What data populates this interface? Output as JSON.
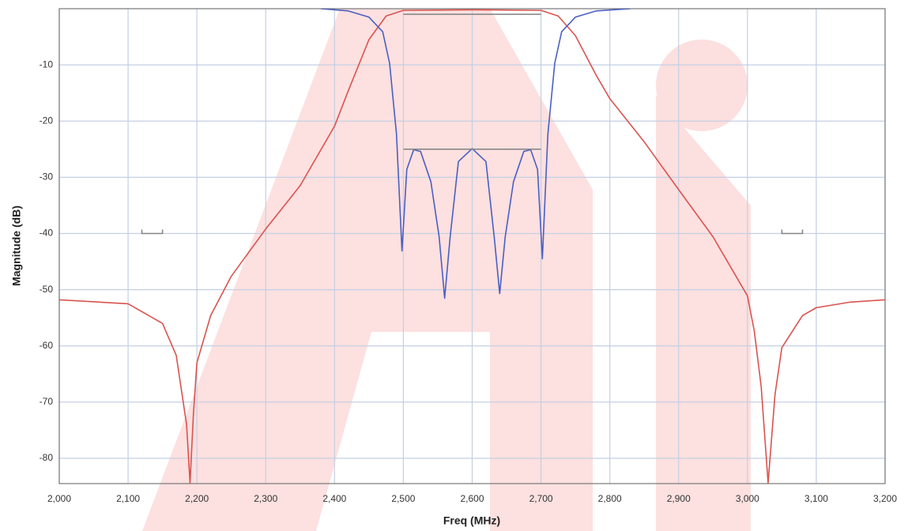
{
  "chart_data": {
    "type": "line",
    "x_label": "Freq (MHz)",
    "y_label": "Magnitude (dB)",
    "xlim": [
      2000,
      3200
    ],
    "ylim": [
      -84.5,
      0
    ],
    "xticks": [
      {
        "value": 2000,
        "label": "2,000"
      },
      {
        "value": 2100,
        "label": "2,100"
      },
      {
        "value": 2200,
        "label": "2,200"
      },
      {
        "value": 2300,
        "label": "2,300"
      },
      {
        "value": 2400,
        "label": "2,400"
      },
      {
        "value": 2500,
        "label": "2,500"
      },
      {
        "value": 2600,
        "label": "2,600"
      },
      {
        "value": 2700,
        "label": "2,700"
      },
      {
        "value": 2800,
        "label": "2,800"
      },
      {
        "value": 2900,
        "label": "2,900"
      },
      {
        "value": 3000,
        "label": "3,000"
      },
      {
        "value": 3100,
        "label": "3,100"
      },
      {
        "value": 3200,
        "label": "3,200"
      }
    ],
    "yticks": [
      -80,
      -70,
      -60,
      -50,
      -40,
      -30,
      -20,
      -10
    ],
    "grid": true,
    "series": [
      {
        "color": "#d9534f",
        "x": [
          2000,
          2100,
          2150,
          2170,
          2185,
          2190,
          2195,
          2200,
          2220,
          2250,
          2300,
          2350,
          2400,
          2420,
          2450,
          2475,
          2500,
          2600,
          2700,
          2725,
          2750,
          2780,
          2800,
          2850,
          2900,
          2950,
          3000,
          3010,
          3020,
          3030,
          3040,
          3050,
          3080,
          3100,
          3150,
          3200
        ],
        "values": [
          -51.8,
          -52.5,
          -56,
          -61.7,
          -74,
          -84.4,
          -72,
          -63,
          -54.6,
          -47.6,
          -39.2,
          -31.5,
          -20.9,
          -14.6,
          -5.5,
          -1.3,
          -0.3,
          -0.2,
          -0.3,
          -1.3,
          -4.8,
          -11.8,
          -16,
          -23.7,
          -32.2,
          -40.6,
          -51.1,
          -57.4,
          -67.3,
          -84.4,
          -68.7,
          -60.3,
          -54.6,
          -53.2,
          -52.2,
          -51.8
        ]
      },
      {
        "color": "#4a5fc1",
        "x": [
          2380,
          2420,
          2450,
          2470,
          2480,
          2490,
          2498,
          2505,
          2515,
          2525,
          2540,
          2552,
          2560,
          2568,
          2580,
          2600,
          2620,
          2632,
          2640,
          2648,
          2660,
          2675,
          2685,
          2695,
          2702,
          2710,
          2720,
          2730,
          2750,
          2780,
          2830
        ],
        "values": [
          0,
          -0.4,
          -1.5,
          -4.1,
          -9.7,
          -22.3,
          -43.1,
          -28.6,
          -25.1,
          -25.4,
          -30.8,
          -40.6,
          -51.5,
          -40.6,
          -27.2,
          -24.9,
          -27.2,
          -40.6,
          -50.7,
          -40.6,
          -30.8,
          -25.4,
          -25.1,
          -28.6,
          -44.5,
          -22.3,
          -9.7,
          -4.1,
          -1.5,
          -0.4,
          0
        ]
      },
      {
        "color": "#888888",
        "x": [
          2500,
          2700
        ],
        "values": [
          -1,
          -1
        ]
      },
      {
        "color": "#888888",
        "x": [
          2500,
          2700
        ],
        "values": [
          -25,
          -25
        ]
      },
      {
        "color": "#888888",
        "x": [
          2120,
          2120,
          2150,
          2150
        ],
        "values": [
          -39.3,
          -40,
          -40,
          -39.3
        ]
      },
      {
        "color": "#888888",
        "x": [
          3050,
          3050,
          3080,
          3080
        ],
        "values": [
          -39.3,
          -40,
          -40,
          -39.3
        ]
      }
    ]
  }
}
